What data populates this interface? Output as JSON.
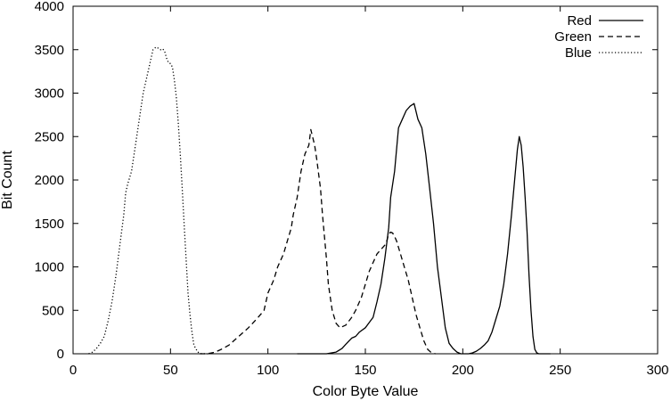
{
  "chart_data": {
    "type": "line",
    "title": "",
    "xlabel": "Color Byte Value",
    "ylabel": "Bit Count",
    "xlim": [
      0,
      300
    ],
    "ylim": [
      0,
      4000
    ],
    "xticks": [
      0,
      50,
      100,
      150,
      200,
      250,
      300
    ],
    "yticks": [
      0,
      500,
      1000,
      1500,
      2000,
      2500,
      3000,
      3500,
      4000
    ],
    "grid": false,
    "legend": "top-right",
    "series": [
      {
        "name": "Red",
        "dash": "solid",
        "points": [
          [
            115,
            0
          ],
          [
            120,
            0
          ],
          [
            125,
            0
          ],
          [
            130,
            0
          ],
          [
            135,
            20
          ],
          [
            138,
            60
          ],
          [
            140,
            110
          ],
          [
            143,
            180
          ],
          [
            145,
            200
          ],
          [
            147,
            250
          ],
          [
            150,
            300
          ],
          [
            152,
            360
          ],
          [
            154,
            420
          ],
          [
            156,
            600
          ],
          [
            158,
            800
          ],
          [
            160,
            1100
          ],
          [
            162,
            1450
          ],
          [
            163,
            1800
          ],
          [
            165,
            2100
          ],
          [
            167,
            2600
          ],
          [
            169,
            2700
          ],
          [
            171,
            2800
          ],
          [
            173,
            2850
          ],
          [
            175,
            2880
          ],
          [
            177,
            2700
          ],
          [
            179,
            2600
          ],
          [
            181,
            2300
          ],
          [
            183,
            1900
          ],
          [
            185,
            1500
          ],
          [
            187,
            1000
          ],
          [
            189,
            650
          ],
          [
            191,
            300
          ],
          [
            193,
            120
          ],
          [
            195,
            60
          ],
          [
            197,
            20
          ],
          [
            199,
            0
          ],
          [
            201,
            0
          ],
          [
            203,
            0
          ],
          [
            205,
            10
          ],
          [
            207,
            30
          ],
          [
            209,
            60
          ],
          [
            211,
            100
          ],
          [
            213,
            150
          ],
          [
            215,
            250
          ],
          [
            217,
            400
          ],
          [
            219,
            550
          ],
          [
            221,
            800
          ],
          [
            223,
            1150
          ],
          [
            225,
            1600
          ],
          [
            227,
            2100
          ],
          [
            228,
            2350
          ],
          [
            229,
            2500
          ],
          [
            230,
            2400
          ],
          [
            231,
            2150
          ],
          [
            232,
            1800
          ],
          [
            233,
            1400
          ],
          [
            234,
            900
          ],
          [
            235,
            500
          ],
          [
            236,
            200
          ],
          [
            237,
            50
          ],
          [
            238,
            10
          ],
          [
            239,
            0
          ],
          [
            245,
            0
          ]
        ]
      },
      {
        "name": "Green",
        "dash": "dashed",
        "points": [
          [
            65,
            0
          ],
          [
            67,
            0
          ],
          [
            70,
            5
          ],
          [
            73,
            20
          ],
          [
            76,
            50
          ],
          [
            80,
            100
          ],
          [
            85,
            200
          ],
          [
            90,
            300
          ],
          [
            95,
            420
          ],
          [
            98,
            500
          ],
          [
            100,
            700
          ],
          [
            103,
            850
          ],
          [
            105,
            1000
          ],
          [
            108,
            1150
          ],
          [
            110,
            1300
          ],
          [
            112,
            1450
          ],
          [
            113,
            1600
          ],
          [
            115,
            1800
          ],
          [
            117,
            2100
          ],
          [
            119,
            2300
          ],
          [
            121,
            2400
          ],
          [
            122,
            2580
          ],
          [
            124,
            2400
          ],
          [
            125,
            2250
          ],
          [
            127,
            1900
          ],
          [
            128,
            1600
          ],
          [
            130,
            1100
          ],
          [
            131,
            800
          ],
          [
            133,
            500
          ],
          [
            135,
            350
          ],
          [
            137,
            300
          ],
          [
            140,
            330
          ],
          [
            143,
            420
          ],
          [
            145,
            500
          ],
          [
            148,
            650
          ],
          [
            150,
            800
          ],
          [
            152,
            950
          ],
          [
            154,
            1050
          ],
          [
            156,
            1150
          ],
          [
            158,
            1200
          ],
          [
            160,
            1250
          ],
          [
            161,
            1300
          ],
          [
            162,
            1380
          ],
          [
            163,
            1400
          ],
          [
            164,
            1390
          ],
          [
            165,
            1350
          ],
          [
            166,
            1300
          ],
          [
            168,
            1150
          ],
          [
            170,
            1000
          ],
          [
            172,
            850
          ],
          [
            174,
            650
          ],
          [
            176,
            450
          ],
          [
            178,
            300
          ],
          [
            180,
            150
          ],
          [
            182,
            50
          ],
          [
            184,
            10
          ],
          [
            186,
            0
          ]
        ]
      },
      {
        "name": "Blue",
        "dash": "dotted",
        "points": [
          [
            8,
            0
          ],
          [
            10,
            20
          ],
          [
            12,
            60
          ],
          [
            14,
            120
          ],
          [
            16,
            200
          ],
          [
            18,
            380
          ],
          [
            20,
            600
          ],
          [
            22,
            900
          ],
          [
            24,
            1250
          ],
          [
            26,
            1600
          ],
          [
            27,
            1850
          ],
          [
            28,
            1950
          ],
          [
            30,
            2100
          ],
          [
            32,
            2400
          ],
          [
            34,
            2700
          ],
          [
            36,
            3000
          ],
          [
            38,
            3200
          ],
          [
            40,
            3400
          ],
          [
            41,
            3500
          ],
          [
            42,
            3520
          ],
          [
            43,
            3530
          ],
          [
            44,
            3510
          ],
          [
            45,
            3500
          ],
          [
            46,
            3510
          ],
          [
            47,
            3480
          ],
          [
            48,
            3400
          ],
          [
            49,
            3350
          ],
          [
            50,
            3340
          ],
          [
            51,
            3300
          ],
          [
            52,
            3150
          ],
          [
            53,
            2950
          ],
          [
            54,
            2650
          ],
          [
            55,
            2300
          ],
          [
            56,
            1900
          ],
          [
            57,
            1500
          ],
          [
            58,
            1100
          ],
          [
            59,
            700
          ],
          [
            60,
            450
          ],
          [
            61,
            250
          ],
          [
            62,
            100
          ],
          [
            64,
            20
          ],
          [
            66,
            0
          ],
          [
            70,
            0
          ]
        ]
      }
    ]
  }
}
